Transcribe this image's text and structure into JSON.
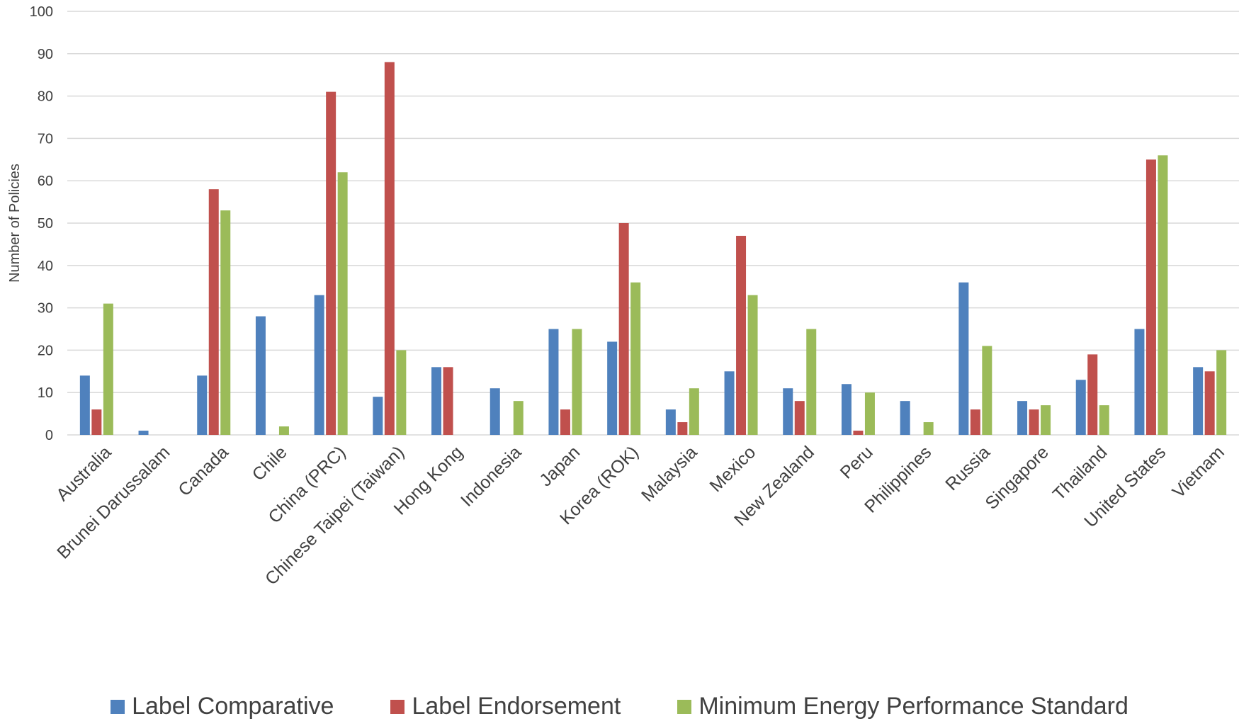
{
  "chart_data": {
    "type": "bar",
    "title": "",
    "xlabel": "",
    "ylabel": "Number of Policies",
    "ylim": [
      0,
      100
    ],
    "y_ticks": [
      "0",
      "10",
      "20",
      "30",
      "40",
      "50",
      "60",
      "70",
      "80",
      "90",
      "100"
    ],
    "grid": true,
    "legend_position": "bottom",
    "categories": [
      "Australia",
      "Brunei Darussalam",
      "Canada",
      "Chile",
      "China (PRC)",
      "Chinese Taipei (Taiwan)",
      "Hong Kong",
      "Indonesia",
      "Japan",
      "Korea (ROK)",
      "Malaysia",
      "Mexico",
      "New Zealand",
      "Peru",
      "Philippines",
      "Russia",
      "Singapore",
      "Thailand",
      "United States",
      "Vietnam"
    ],
    "series": [
      {
        "name": "Label Comparative",
        "color": "#4f81bd",
        "values": [
          14,
          1,
          14,
          28,
          33,
          9,
          16,
          11,
          25,
          22,
          6,
          15,
          11,
          12,
          8,
          36,
          8,
          13,
          25,
          16
        ]
      },
      {
        "name": "Label Endorsement",
        "color": "#c0504d",
        "values": [
          6,
          0,
          58,
          0,
          81,
          88,
          16,
          0,
          6,
          50,
          3,
          47,
          8,
          1,
          0,
          6,
          6,
          19,
          65,
          15
        ]
      },
      {
        "name": "Minimum Energy Performance Standard",
        "color": "#9bbb59",
        "values": [
          31,
          0,
          53,
          2,
          62,
          20,
          0,
          8,
          25,
          36,
          11,
          33,
          25,
          10,
          3,
          21,
          7,
          7,
          66,
          20
        ]
      }
    ]
  },
  "colors": {
    "gridline": "#d9d9d9",
    "axis_text": "#404040"
  }
}
